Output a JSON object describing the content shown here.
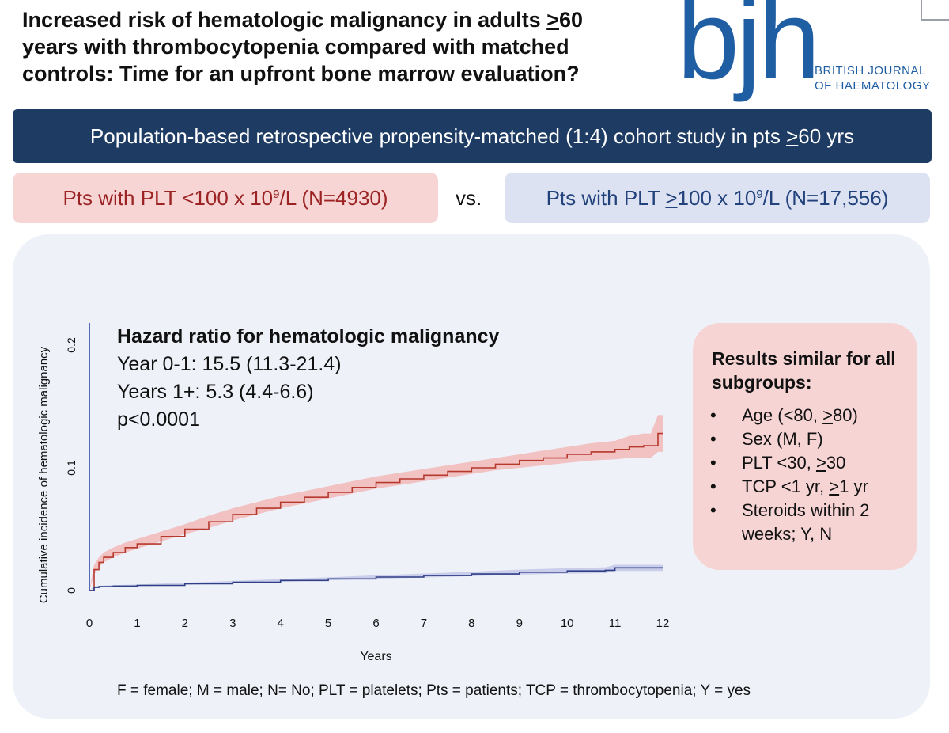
{
  "title": {
    "line1_pre": "Increased risk of hematologic malignancy in adults ",
    "line1_u": ">",
    "line1_post": "60",
    "line2": "years with thrombocytopenia compared with matched",
    "line3": "controls: Time for an upfront bone marrow evaluation?"
  },
  "logo": {
    "letters": "bjh",
    "line1": "BRITISH JOURNAL",
    "line2": "OF HAEMATOLOGY"
  },
  "banner": {
    "pre": "Population-based retrospective propensity-matched (1:4) cohort study in pts ",
    "u": ">",
    "post": "60 yrs"
  },
  "groups": {
    "red": {
      "pre": "Pts with PLT <100 x 10",
      "sup": "9",
      "post": "/L (N=4930)"
    },
    "vs": "vs.",
    "blue": {
      "pre": "Pts with PLT ",
      "u": ">",
      "mid": "100 x 10",
      "sup": "9",
      "post": "/L (N=17,556)"
    }
  },
  "hazard": {
    "title": "Hazard ratio for hematologic malignancy",
    "line1": "Year 0-1: 15.5 (11.3-21.4)",
    "line2": "Years 1+: 5.3 (4.4-6.6)",
    "line3": "p<0.0001"
  },
  "results": {
    "title": "Results similar for all subgroups:",
    "bullet": "•",
    "items": [
      {
        "pre": "Age (<80, ",
        "u": ">",
        "post": "80)"
      },
      {
        "pre": "Sex (M, F)",
        "u": "",
        "post": ""
      },
      {
        "pre": "PLT <30, ",
        "u": ">",
        "post": "30"
      },
      {
        "pre": "TCP <1 yr, ",
        "u": ">",
        "post": "1 yr"
      },
      {
        "pre": "Steroids within 2 weeks; Y, N",
        "u": "",
        "post": ""
      }
    ]
  },
  "footnote": "F = female; M = male; N= No; PLT = platelets; Pts = patients; TCP = thrombocytopenia; Y = yes",
  "chart_data": {
    "type": "line",
    "title": "",
    "xlabel": "Years",
    "ylabel": "Cumulative incidence of hematologic malignancy",
    "xlim": [
      0,
      12
    ],
    "ylim": [
      0,
      0.2
    ],
    "xticks": [
      0,
      1,
      2,
      3,
      4,
      5,
      6,
      7,
      8,
      9,
      10,
      11,
      12
    ],
    "yticks": [
      0,
      0.1,
      0.2
    ],
    "ytick_labels": [
      "0",
      "0.1",
      "0.2"
    ],
    "series": [
      {
        "color": "#b5392d",
        "band_color": "#f2b8b8",
        "x": [
          0,
          0.1,
          0.2,
          0.3,
          0.5,
          0.75,
          1,
          1.5,
          2,
          2.5,
          3,
          3.5,
          4,
          4.5,
          5,
          5.5,
          6,
          6.5,
          7,
          7.5,
          8,
          8.5,
          9,
          9.5,
          10,
          10.5,
          11,
          11.3,
          11.6,
          11.75,
          11.9,
          12
        ],
        "values": [
          0,
          0.017,
          0.023,
          0.027,
          0.031,
          0.035,
          0.038,
          0.044,
          0.05,
          0.056,
          0.062,
          0.067,
          0.072,
          0.076,
          0.08,
          0.084,
          0.088,
          0.091,
          0.094,
          0.097,
          0.1,
          0.103,
          0.106,
          0.108,
          0.111,
          0.113,
          0.115,
          0.117,
          0.118,
          0.118,
          0.128,
          0.128
        ],
        "lower": [
          0,
          0.013,
          0.019,
          0.023,
          0.027,
          0.031,
          0.034,
          0.04,
          0.046,
          0.051,
          0.057,
          0.062,
          0.067,
          0.071,
          0.075,
          0.079,
          0.083,
          0.086,
          0.089,
          0.092,
          0.095,
          0.098,
          0.1,
          0.102,
          0.104,
          0.106,
          0.107,
          0.108,
          0.108,
          0.108,
          0.113,
          0.113
        ],
        "upper": [
          0,
          0.021,
          0.027,
          0.031,
          0.035,
          0.039,
          0.042,
          0.048,
          0.054,
          0.061,
          0.067,
          0.072,
          0.077,
          0.081,
          0.085,
          0.089,
          0.093,
          0.096,
          0.099,
          0.102,
          0.105,
          0.108,
          0.111,
          0.114,
          0.117,
          0.12,
          0.122,
          0.126,
          0.128,
          0.128,
          0.143,
          0.143
        ]
      },
      {
        "color": "#2e3f86",
        "band_color": "#c3c8e8",
        "x": [
          0,
          0.1,
          0.2,
          0.5,
          1,
          2,
          3,
          4,
          5,
          6,
          7,
          8,
          9,
          10,
          10.8,
          11,
          12
        ],
        "values": [
          0,
          0.0025,
          0.0032,
          0.0036,
          0.0042,
          0.0055,
          0.0068,
          0.0082,
          0.0095,
          0.011,
          0.0122,
          0.0135,
          0.015,
          0.016,
          0.0165,
          0.0185,
          0.0185
        ],
        "lower": [
          0,
          0.0018,
          0.0025,
          0.0029,
          0.0035,
          0.0046,
          0.0058,
          0.0071,
          0.0083,
          0.0096,
          0.0106,
          0.0117,
          0.013,
          0.0138,
          0.0141,
          0.016,
          0.016
        ],
        "upper": [
          0,
          0.0032,
          0.0039,
          0.0043,
          0.0049,
          0.0064,
          0.0078,
          0.0093,
          0.0107,
          0.0124,
          0.0138,
          0.0153,
          0.017,
          0.0182,
          0.0189,
          0.021,
          0.021
        ]
      }
    ]
  }
}
